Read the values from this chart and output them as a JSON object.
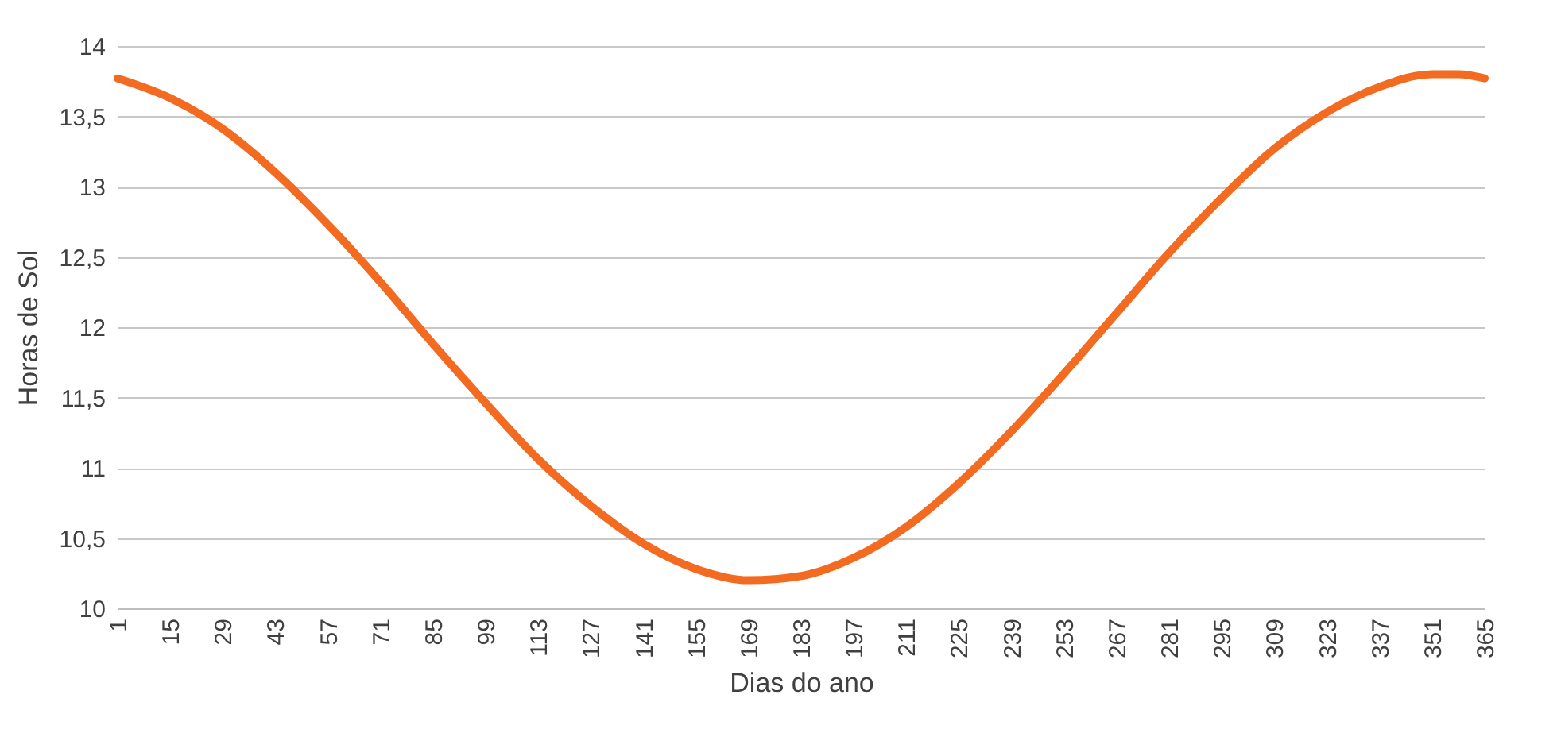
{
  "chart_data": {
    "type": "line",
    "xlabel": "Dias do ano",
    "ylabel": "Horas de Sol",
    "x": [
      1,
      15,
      29,
      43,
      57,
      71,
      85,
      99,
      113,
      127,
      141,
      155,
      169,
      183,
      197,
      211,
      225,
      239,
      253,
      267,
      281,
      295,
      309,
      323,
      337,
      351,
      358,
      365
    ],
    "series": [
      {
        "color": "#f36a21",
        "values": [
          13.77,
          13.63,
          13.41,
          13.1,
          12.73,
          12.32,
          11.88,
          11.46,
          11.06,
          10.73,
          10.46,
          10.28,
          10.2,
          10.23,
          10.36,
          10.58,
          10.89,
          11.26,
          11.67,
          12.1,
          12.53,
          12.92,
          13.27,
          13.53,
          13.71,
          13.8,
          13.8,
          13.77
        ]
      }
    ],
    "xlim": [
      1,
      365
    ],
    "xticks": [
      1,
      15,
      29,
      43,
      57,
      71,
      85,
      99,
      113,
      127,
      141,
      155,
      169,
      183,
      197,
      211,
      225,
      239,
      253,
      267,
      281,
      295,
      309,
      323,
      337,
      351,
      365
    ],
    "ylim": [
      10,
      14
    ],
    "yticks": [
      {
        "value": 10,
        "label": "10"
      },
      {
        "value": 10.5,
        "label": "10,5"
      },
      {
        "value": 11,
        "label": "11"
      },
      {
        "value": 11.5,
        "label": "11,5"
      },
      {
        "value": 12,
        "label": "12"
      },
      {
        "value": 12.5,
        "label": "12,5"
      },
      {
        "value": 13,
        "label": "13"
      },
      {
        "value": 13.5,
        "label": "13,5"
      },
      {
        "value": 14,
        "label": "14"
      }
    ],
    "grid": "y",
    "marker": "none",
    "line_style": "solid"
  }
}
